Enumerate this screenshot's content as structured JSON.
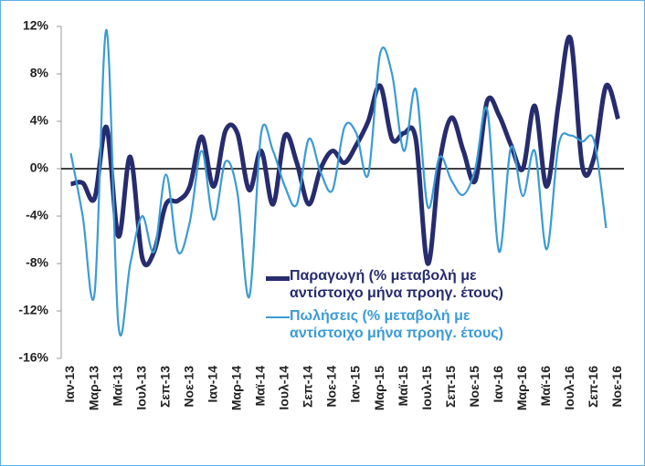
{
  "chart_data": {
    "type": "line",
    "categories": [
      "Ιαν-13",
      null,
      "Μαρ-13",
      null,
      "Μαϊ-13",
      null,
      "Ιουλ-13",
      null,
      "Σεπ-13",
      null,
      "Νοε-13",
      null,
      "Ιαν-14",
      null,
      "Μαρ-14",
      null,
      "Μαϊ-14",
      null,
      "Ιουλ-14",
      null,
      "Σεπ-14",
      null,
      "Νοε-14",
      null,
      "Ιαν-15",
      null,
      "Μαρ-15",
      null,
      "Μαϊ-15",
      null,
      "Ιουλ-15",
      null,
      "Σεπ-15",
      null,
      "Νοε-15",
      null,
      "Ιαν-16",
      null,
      "Μαρ-16",
      null,
      "Μαϊ-16",
      null,
      "Ιουλ-16",
      null,
      "Σεπ-16",
      null,
      "Νοε-16"
    ],
    "series": [
      {
        "name": "Παραγωγή (% μεταβολή με αντίστοιχο μήνα προηγ. έτους)",
        "color": "#262c6e",
        "values": [
          -1.3,
          -1.2,
          -2.5,
          3.5,
          -5.7,
          1.0,
          -7.5,
          -7.0,
          -3.0,
          -2.7,
          -1.5,
          2.7,
          -1.5,
          3.2,
          3.0,
          -1.8,
          1.5,
          -3.0,
          2.8,
          0.5,
          -3.0,
          0,
          1.5,
          0.5,
          2.0,
          4.0,
          7.0,
          2.5,
          3.0,
          2.5,
          -8.0,
          0.5,
          4.3,
          1.5,
          -1.0,
          5.7,
          4.5,
          2.0,
          0,
          5.3,
          -1.5,
          5.5,
          11.0,
          0.2,
          1.0,
          7.0,
          4.2
        ]
      },
      {
        "name": "Πωλήσεις (% μεταβολή με αντίστοιχο μήνα προηγ. έτους)",
        "color": "#3a9bd5",
        "values": [
          1.3,
          -4.0,
          -10.5,
          11.7,
          -13.2,
          -8.0,
          -4.0,
          -7.0,
          -0.5,
          -7.0,
          -4.5,
          1.5,
          -4.3,
          0.6,
          -2.0,
          -10.8,
          3.0,
          1.5,
          -1.5,
          -3.0,
          2.5,
          -0.3,
          -1.8,
          3.5,
          3.0,
          -0.5,
          9.7,
          8.0,
          1.5,
          6.7,
          -3.2,
          1.0,
          -1.0,
          -2.2,
          0,
          5.0,
          -7.0,
          1.8,
          -2.3,
          1.5,
          -6.8,
          2.0,
          2.8,
          2.3,
          2.3,
          -5.0,
          null
        ]
      }
    ],
    "ylim": [
      -16,
      12
    ],
    "yticks": [
      {
        "value": -16,
        "label": "-16%"
      },
      {
        "value": -12,
        "label": "-12%"
      },
      {
        "value": -8,
        "label": "-8%"
      },
      {
        "value": -4,
        "label": "-4%"
      },
      {
        "value": 0,
        "label": "0%"
      },
      {
        "value": 4,
        "label": "4%"
      },
      {
        "value": 8,
        "label": "8%"
      },
      {
        "value": 12,
        "label": "12%"
      }
    ],
    "grid": false
  }
}
